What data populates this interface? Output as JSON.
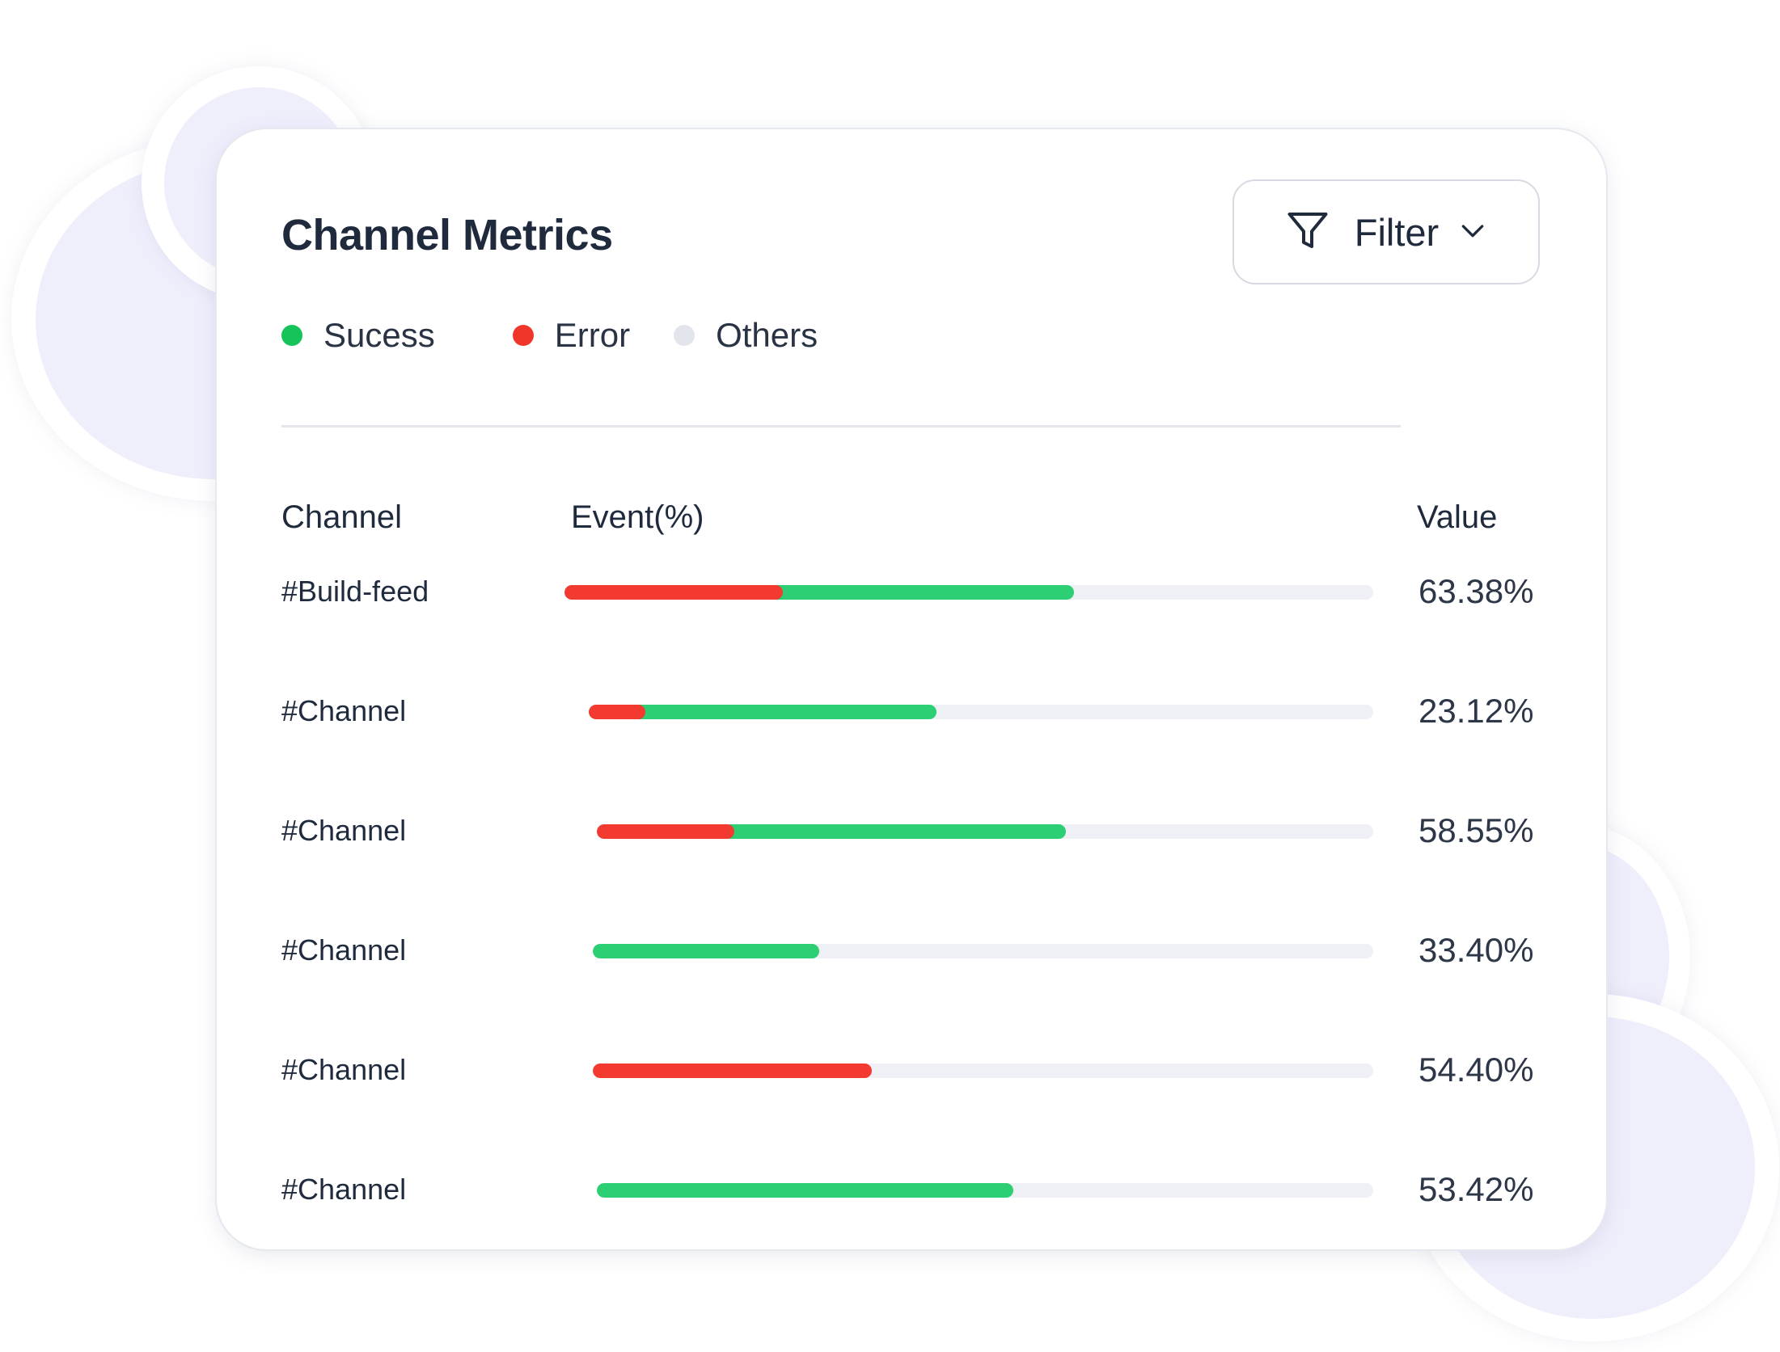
{
  "card": {
    "title": "Channel Metrics",
    "filter": {
      "label": "Filter",
      "icon": "funnel-icon",
      "chevron_icon": "chevron-down-icon"
    }
  },
  "legend": [
    {
      "label": "Sucess",
      "color": "#16c35a"
    },
    {
      "label": "Error",
      "color": "#f0362b"
    },
    {
      "label": "Others",
      "color": "#e3e5ec"
    }
  ],
  "table": {
    "headers": {
      "channel": "Channel",
      "event": "Event(%)",
      "value": "Value"
    },
    "rows": [
      {
        "channel": "#Build-feed",
        "value": "63.38%",
        "error_fraction": 0.27,
        "success_fraction": 0.36,
        "offset_fraction": 0.0
      },
      {
        "channel": "#Channel",
        "value": "23.12%",
        "error_fraction": 0.07,
        "success_fraction": 0.36,
        "offset_fraction": 0.03
      },
      {
        "channel": "#Channel",
        "value": "58.55%",
        "error_fraction": 0.17,
        "success_fraction": 0.41,
        "offset_fraction": 0.04
      },
      {
        "channel": "#Channel",
        "value": "33.40%",
        "error_fraction": 0.0,
        "success_fraction": 0.28,
        "offset_fraction": 0.035
      },
      {
        "channel": "#Channel",
        "value": "54.40%",
        "error_fraction": 0.345,
        "success_fraction": 0.0,
        "offset_fraction": 0.035
      },
      {
        "channel": "#Channel",
        "value": "53.42%",
        "error_fraction": 0.0,
        "success_fraction": 0.515,
        "offset_fraction": 0.04
      }
    ]
  },
  "colors": {
    "success": "#2dcf74",
    "error": "#f23a30",
    "track": "#eff0f5"
  }
}
